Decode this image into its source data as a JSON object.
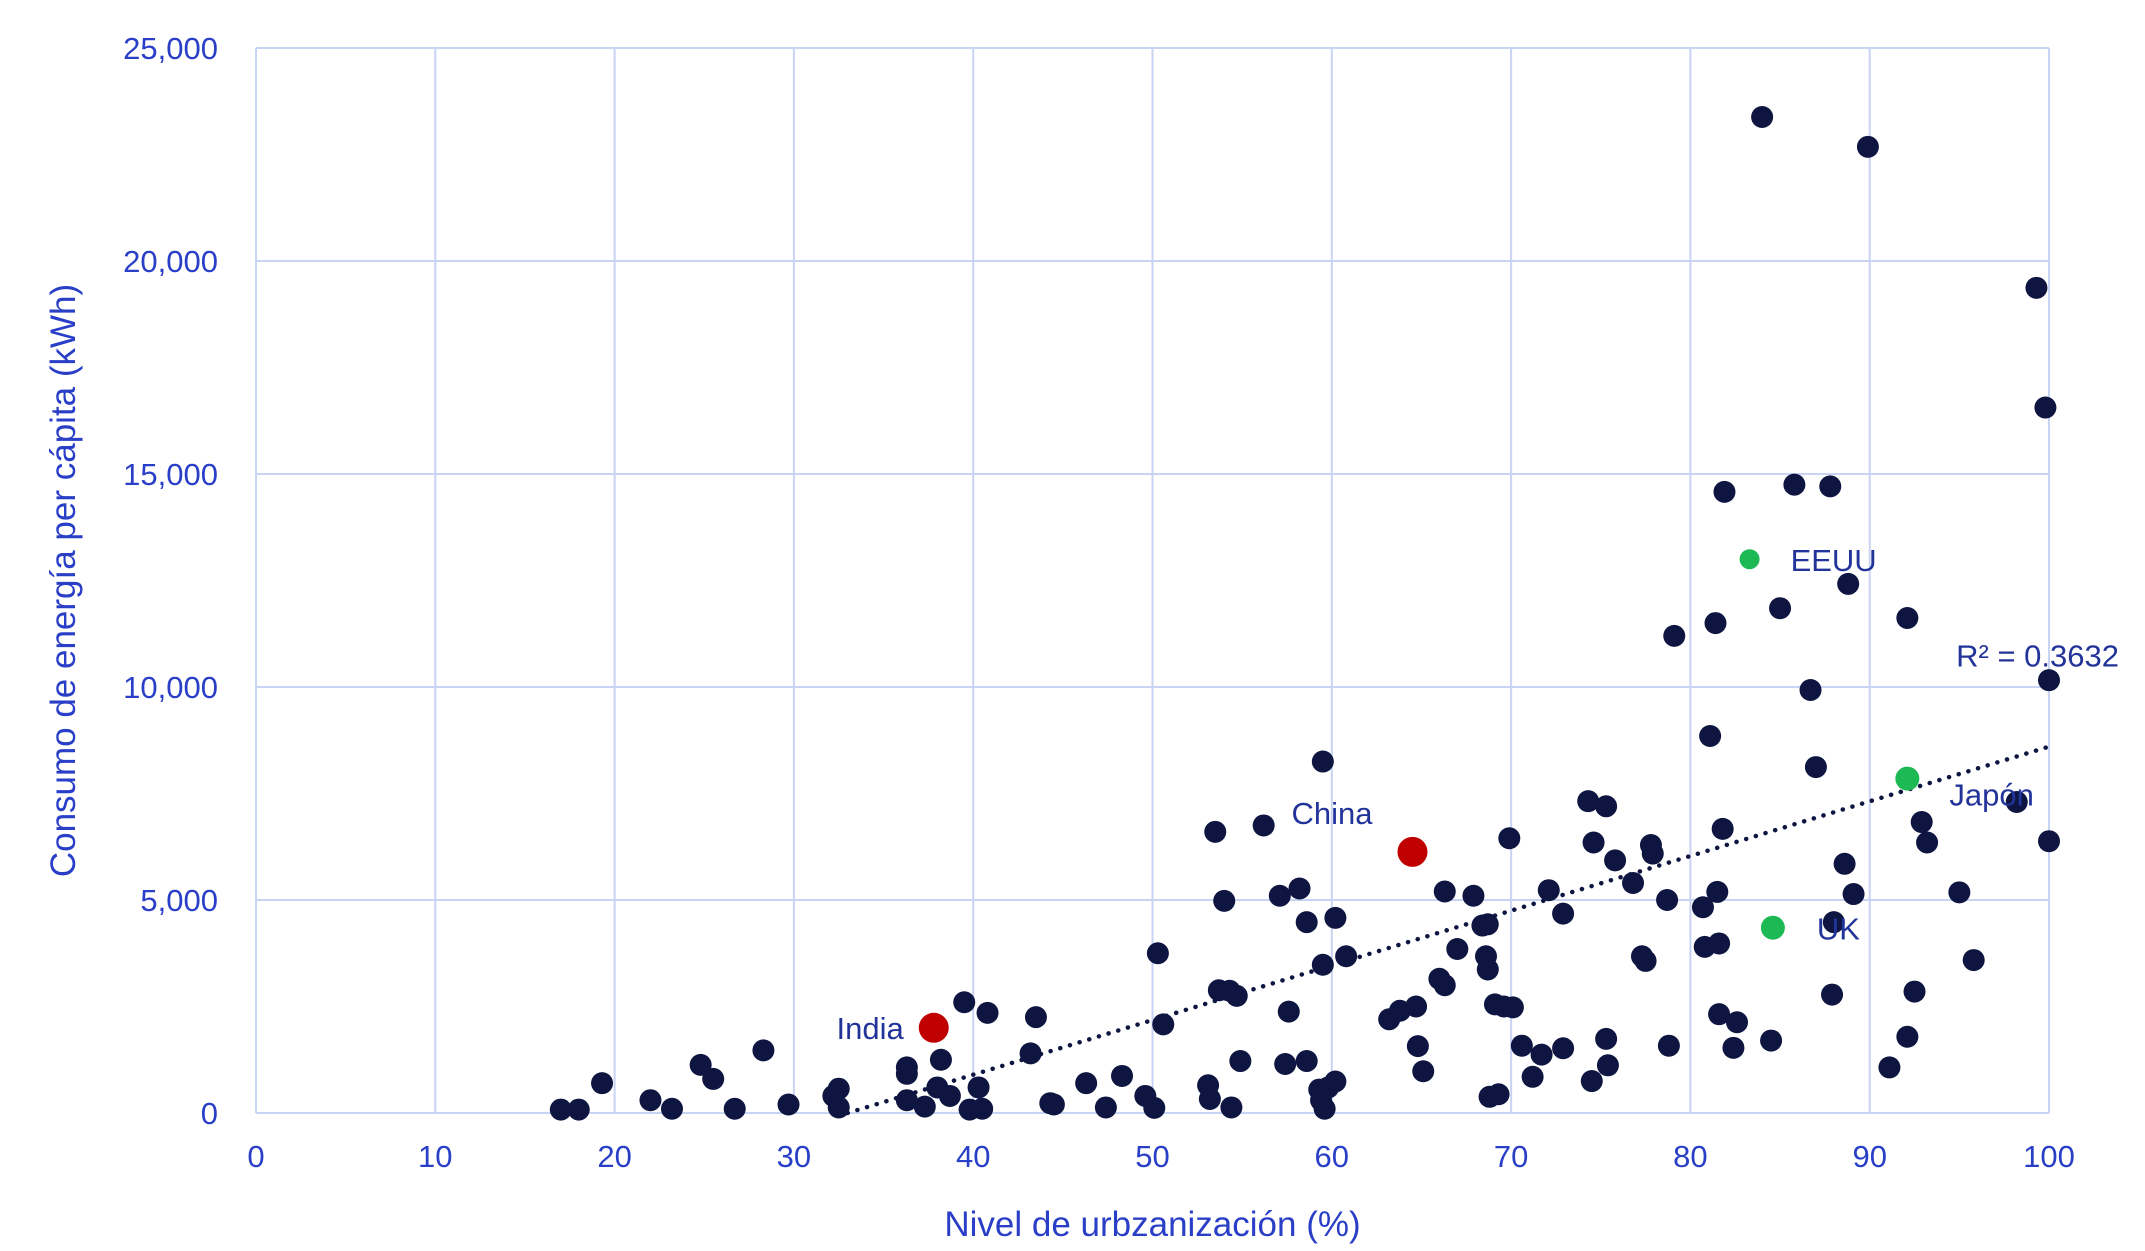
{
  "chart_data": {
    "type": "scatter",
    "xlabel": "Nivel de urbzanización (%)",
    "ylabel": "Consumo de energía per cápita (kWh)",
    "xlim": [
      0,
      100
    ],
    "ylim": [
      0,
      25000
    ],
    "x_ticks": [
      0,
      10,
      20,
      30,
      40,
      50,
      60,
      70,
      80,
      90,
      100
    ],
    "y_ticks": [
      0,
      5000,
      10000,
      15000,
      20000,
      25000
    ],
    "x_tick_labels": [
      "0",
      "10",
      "20",
      "30",
      "40",
      "50",
      "60",
      "70",
      "80",
      "90",
      "100"
    ],
    "y_tick_labels": [
      "0",
      "5,000",
      "10,000",
      "15,000",
      "20,000",
      "25,000"
    ],
    "grid": true,
    "colors": {
      "points": "#0d1540",
      "highlight_red": "#c00000",
      "highlight_green": "#1db954",
      "text": "#2a3fc7",
      "grid": "#c9d3f3"
    },
    "trendline": {
      "type": "linear",
      "style": "dotted",
      "x_start": 33,
      "y_start": 0,
      "x_end": 100,
      "y_end": 8600,
      "r2_label": "R² = 0.3632"
    },
    "points": [
      {
        "x": 17,
        "y": 80
      },
      {
        "x": 18,
        "y": 80
      },
      {
        "x": 19.3,
        "y": 700
      },
      {
        "x": 22,
        "y": 300
      },
      {
        "x": 23.2,
        "y": 100
      },
      {
        "x": 24.8,
        "y": 1130
      },
      {
        "x": 25.5,
        "y": 800
      },
      {
        "x": 26.7,
        "y": 100
      },
      {
        "x": 28.3,
        "y": 1470
      },
      {
        "x": 29.7,
        "y": 200
      },
      {
        "x": 32.2,
        "y": 400
      },
      {
        "x": 32.5,
        "y": 570
      },
      {
        "x": 32.5,
        "y": 130
      },
      {
        "x": 36.3,
        "y": 1070
      },
      {
        "x": 36.3,
        "y": 920
      },
      {
        "x": 36.3,
        "y": 300
      },
      {
        "x": 37.3,
        "y": 150
      },
      {
        "x": 38,
        "y": 600
      },
      {
        "x": 38.2,
        "y": 1250
      },
      {
        "x": 38.7,
        "y": 400
      },
      {
        "x": 39.5,
        "y": 2600
      },
      {
        "x": 39.8,
        "y": 80
      },
      {
        "x": 40.3,
        "y": 600
      },
      {
        "x": 40.5,
        "y": 100
      },
      {
        "x": 40.8,
        "y": 2350
      },
      {
        "x": 43.2,
        "y": 1400
      },
      {
        "x": 43.5,
        "y": 2250
      },
      {
        "x": 44.3,
        "y": 230
      },
      {
        "x": 44.5,
        "y": 200
      },
      {
        "x": 46.3,
        "y": 700
      },
      {
        "x": 47.4,
        "y": 130
      },
      {
        "x": 48.3,
        "y": 870
      },
      {
        "x": 49.6,
        "y": 400
      },
      {
        "x": 50.1,
        "y": 120
      },
      {
        "x": 50.3,
        "y": 3750
      },
      {
        "x": 50.6,
        "y": 2080
      },
      {
        "x": 53.1,
        "y": 650
      },
      {
        "x": 53.2,
        "y": 330
      },
      {
        "x": 53.5,
        "y": 6600
      },
      {
        "x": 53.7,
        "y": 2880
      },
      {
        "x": 54,
        "y": 4980
      },
      {
        "x": 54.3,
        "y": 2870
      },
      {
        "x": 54.4,
        "y": 130
      },
      {
        "x": 54.7,
        "y": 2750
      },
      {
        "x": 54.9,
        "y": 1220
      },
      {
        "x": 56.2,
        "y": 6750
      },
      {
        "x": 57.1,
        "y": 5100
      },
      {
        "x": 57.4,
        "y": 1150
      },
      {
        "x": 57.6,
        "y": 2380
      },
      {
        "x": 58.2,
        "y": 5270
      },
      {
        "x": 58.6,
        "y": 4480
      },
      {
        "x": 58.6,
        "y": 1220
      },
      {
        "x": 59.3,
        "y": 550
      },
      {
        "x": 59.4,
        "y": 300
      },
      {
        "x": 59.5,
        "y": 3480
      },
      {
        "x": 59.5,
        "y": 8250
      },
      {
        "x": 59.6,
        "y": 100
      },
      {
        "x": 59.8,
        "y": 600
      },
      {
        "x": 60.2,
        "y": 740
      },
      {
        "x": 60.2,
        "y": 4580
      },
      {
        "x": 60.8,
        "y": 3680
      },
      {
        "x": 63.2,
        "y": 2200
      },
      {
        "x": 63.8,
        "y": 2400
      },
      {
        "x": 64.7,
        "y": 2500
      },
      {
        "x": 64.8,
        "y": 1570
      },
      {
        "x": 65.1,
        "y": 980
      },
      {
        "x": 66,
        "y": 3150
      },
      {
        "x": 66.3,
        "y": 3000
      },
      {
        "x": 66.3,
        "y": 5200
      },
      {
        "x": 67,
        "y": 3850
      },
      {
        "x": 67.9,
        "y": 5100
      },
      {
        "x": 68.4,
        "y": 4400
      },
      {
        "x": 68.6,
        "y": 3680
      },
      {
        "x": 68.7,
        "y": 4430
      },
      {
        "x": 68.7,
        "y": 3370
      },
      {
        "x": 68.8,
        "y": 380
      },
      {
        "x": 69.1,
        "y": 2550
      },
      {
        "x": 69.3,
        "y": 440
      },
      {
        "x": 69.6,
        "y": 2500
      },
      {
        "x": 69.9,
        "y": 6450
      },
      {
        "x": 70.1,
        "y": 2480
      },
      {
        "x": 70.6,
        "y": 1580
      },
      {
        "x": 71.2,
        "y": 850
      },
      {
        "x": 71.7,
        "y": 1370
      },
      {
        "x": 72.1,
        "y": 5230
      },
      {
        "x": 72.9,
        "y": 4680
      },
      {
        "x": 72.9,
        "y": 1520
      },
      {
        "x": 74.3,
        "y": 7320
      },
      {
        "x": 74.5,
        "y": 750
      },
      {
        "x": 74.6,
        "y": 6350
      },
      {
        "x": 75.3,
        "y": 7200
      },
      {
        "x": 75.3,
        "y": 1740
      },
      {
        "x": 75.4,
        "y": 1120
      },
      {
        "x": 75.8,
        "y": 5930
      },
      {
        "x": 76.8,
        "y": 5400
      },
      {
        "x": 77.3,
        "y": 3680
      },
      {
        "x": 77.5,
        "y": 3570
      },
      {
        "x": 77.8,
        "y": 6290
      },
      {
        "x": 77.9,
        "y": 6090
      },
      {
        "x": 78.7,
        "y": 5000
      },
      {
        "x": 78.8,
        "y": 1580
      },
      {
        "x": 79.1,
        "y": 11200
      },
      {
        "x": 80.7,
        "y": 4830
      },
      {
        "x": 80.8,
        "y": 3900
      },
      {
        "x": 81.1,
        "y": 8850
      },
      {
        "x": 81.4,
        "y": 11500
      },
      {
        "x": 81.5,
        "y": 5190
      },
      {
        "x": 81.6,
        "y": 3980
      },
      {
        "x": 81.6,
        "y": 2320
      },
      {
        "x": 81.8,
        "y": 6670
      },
      {
        "x": 81.9,
        "y": 14580
      },
      {
        "x": 82.4,
        "y": 1530
      },
      {
        "x": 82.6,
        "y": 2130
      },
      {
        "x": 84,
        "y": 23380
      },
      {
        "x": 84.5,
        "y": 1700
      },
      {
        "x": 85,
        "y": 11850
      },
      {
        "x": 85.8,
        "y": 14750
      },
      {
        "x": 86.7,
        "y": 9930
      },
      {
        "x": 87,
        "y": 8120
      },
      {
        "x": 87.8,
        "y": 14710
      },
      {
        "x": 87.9,
        "y": 2780
      },
      {
        "x": 88,
        "y": 4480
      },
      {
        "x": 88.6,
        "y": 5850
      },
      {
        "x": 88.8,
        "y": 12420
      },
      {
        "x": 89.1,
        "y": 5140
      },
      {
        "x": 89.9,
        "y": 22680
      },
      {
        "x": 91.1,
        "y": 1070
      },
      {
        "x": 92.1,
        "y": 11620
      },
      {
        "x": 92.1,
        "y": 1790
      },
      {
        "x": 92.5,
        "y": 2850
      },
      {
        "x": 92.9,
        "y": 6830
      },
      {
        "x": 93.2,
        "y": 6350
      },
      {
        "x": 95,
        "y": 5180
      },
      {
        "x": 95.8,
        "y": 3590
      },
      {
        "x": 98.2,
        "y": 7300
      },
      {
        "x": 99.3,
        "y": 19370
      },
      {
        "x": 99.8,
        "y": 16560
      },
      {
        "x": 100,
        "y": 10160
      },
      {
        "x": 100,
        "y": 6380
      }
    ],
    "highlights": [
      {
        "label": "India",
        "x": 37.8,
        "y": 2000,
        "color": "red"
      },
      {
        "label": "China",
        "x": 64.5,
        "y": 6130,
        "color": "red"
      },
      {
        "label": "EEUU",
        "x": 83.3,
        "y": 13000,
        "color": "green"
      },
      {
        "label": "UK",
        "x": 84.6,
        "y": 4350,
        "color": "green"
      },
      {
        "label": "Japón",
        "x": 92.1,
        "y": 7850,
        "color": "green"
      }
    ]
  }
}
